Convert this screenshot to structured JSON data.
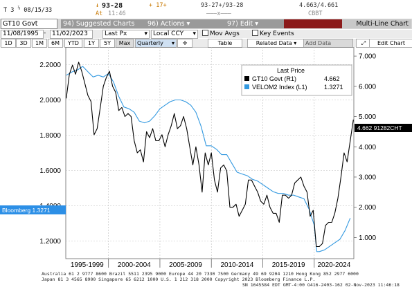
{
  "ticker": {
    "t_prefix": "T 3",
    "frac": "⅞",
    "maturity": "08/15/33",
    "arrow": "↓",
    "price": "93-28",
    "at_label": "At",
    "at_time": "11:46",
    "change": "+ 17+",
    "bid_ask": "93-27+/93-28",
    "dashes": "———x———",
    "yields": "4.663/4.661",
    "source": "CBBT"
  },
  "toolbar": {
    "security": "GT10 Govt",
    "suggested_label": "94) Suggested Charts",
    "actions_label": "96) Actions ▾",
    "edit_label": "97) Edit ▾",
    "multi_line_label": "Multi-Line Chart"
  },
  "range_bar": {
    "start_date": "11/08/1995",
    "end_date": "11/02/2023",
    "field": "Last Px",
    "currency": "Local CCY",
    "mov_avgs": "Mov Avgs",
    "key_events": "Key Events"
  },
  "period_bar": {
    "periods": [
      "1D",
      "3D",
      "1M",
      "6M",
      "YTD",
      "1Y",
      "5Y",
      "Max"
    ],
    "frequency": "Quarterly",
    "table": "Table",
    "related_data": "Related Data",
    "add_data": "Add Data",
    "edit_chart": "Edit Chart"
  },
  "legend": {
    "title": "Last Price",
    "entries": [
      {
        "label": "GT10 Govt  (R1)",
        "value": "4.662"
      },
      {
        "label": "VELOM2 Index  (L1)",
        "value": "1.3271"
      }
    ]
  },
  "tags": {
    "right_last": "4.662 91282CHT",
    "left_last": "Bloomberg 1.3271"
  },
  "colors": {
    "gt10": "#000000",
    "velom2": "#3399e0",
    "tag_black": "#000000",
    "tag_blue": "#2c8fe6"
  },
  "chart_data": {
    "type": "line",
    "x_labels": [
      "1995-1999",
      "2000-2004",
      "2005-2009",
      "2010-2014",
      "2015-2019",
      "2020-2024"
    ],
    "left_axis": {
      "ticks": [
        "2.2000",
        "2.0000",
        "1.8000",
        "1.6000",
        "1.4000",
        "1.2000"
      ],
      "ylim": [
        1.1,
        2.3
      ]
    },
    "right_axis": {
      "ticks": [
        "7.000",
        "6.000",
        "5.000",
        "4.000",
        "3.000",
        "2.000",
        "1.000"
      ],
      "ylim": [
        0.3,
        7.3
      ]
    },
    "x_range": [
      1995.85,
      2023.85
    ],
    "grid": true,
    "series": [
      {
        "name": "VELOM2 Index",
        "axis": "left",
        "x": [
          1995.9,
          1996.5,
          1997.0,
          1997.5,
          1998.0,
          1998.5,
          1999.0,
          1999.5,
          2000.0,
          2000.5,
          2001.0,
          2001.5,
          2002.0,
          2002.5,
          2003.0,
          2003.5,
          2004.0,
          2004.5,
          2005.0,
          2005.5,
          2006.0,
          2006.5,
          2007.0,
          2007.5,
          2008.0,
          2008.5,
          2009.0,
          2009.5,
          2010.0,
          2010.5,
          2011.0,
          2011.5,
          2012.0,
          2012.5,
          2013.0,
          2013.5,
          2014.0,
          2014.5,
          2015.0,
          2015.5,
          2016.0,
          2016.5,
          2017.0,
          2017.5,
          2018.0,
          2018.5,
          2019.0,
          2019.5,
          2020.0,
          2020.25,
          2020.5,
          2021.0,
          2021.5,
          2022.0,
          2022.5,
          2023.0,
          2023.5
        ],
        "y": [
          2.14,
          2.16,
          2.17,
          2.19,
          2.16,
          2.13,
          2.14,
          2.13,
          2.15,
          2.1,
          2.02,
          1.96,
          1.95,
          1.93,
          1.88,
          1.87,
          1.88,
          1.91,
          1.95,
          1.97,
          1.99,
          2.0,
          2.0,
          1.99,
          1.97,
          1.93,
          1.85,
          1.74,
          1.74,
          1.72,
          1.69,
          1.69,
          1.64,
          1.59,
          1.58,
          1.57,
          1.55,
          1.54,
          1.52,
          1.5,
          1.48,
          1.47,
          1.47,
          1.46,
          1.46,
          1.45,
          1.44,
          1.38,
          1.29,
          1.14,
          1.14,
          1.15,
          1.17,
          1.19,
          1.21,
          1.26,
          1.33
        ]
      },
      {
        "name": "GT10 Govt",
        "axis": "right",
        "x": [
          1995.9,
          1996.2,
          1996.5,
          1996.8,
          1997.1,
          1997.4,
          1997.7,
          1998.0,
          1998.3,
          1998.6,
          1998.9,
          1999.2,
          1999.5,
          1999.8,
          2000.1,
          2000.4,
          2000.7,
          2001.0,
          2001.3,
          2001.6,
          2001.9,
          2002.2,
          2002.5,
          2002.8,
          2003.1,
          2003.4,
          2003.7,
          2004.0,
          2004.3,
          2004.6,
          2004.9,
          2005.2,
          2005.5,
          2005.8,
          2006.1,
          2006.4,
          2006.7,
          2007.0,
          2007.3,
          2007.6,
          2007.9,
          2008.2,
          2008.5,
          2008.8,
          2009.1,
          2009.4,
          2009.7,
          2010.0,
          2010.3,
          2010.6,
          2010.9,
          2011.2,
          2011.5,
          2011.8,
          2012.1,
          2012.4,
          2012.7,
          2013.0,
          2013.3,
          2013.6,
          2013.9,
          2014.2,
          2014.5,
          2014.8,
          2015.1,
          2015.4,
          2015.7,
          2016.0,
          2016.3,
          2016.6,
          2016.9,
          2017.2,
          2017.5,
          2017.8,
          2018.1,
          2018.4,
          2018.7,
          2019.0,
          2019.3,
          2019.6,
          2019.9,
          2020.2,
          2020.5,
          2020.8,
          2021.1,
          2021.4,
          2021.7,
          2022.0,
          2022.3,
          2022.6,
          2022.9,
          2023.2,
          2023.5,
          2023.8
        ],
        "y": [
          5.6,
          6.4,
          6.7,
          6.4,
          6.8,
          6.5,
          6.1,
          5.7,
          5.5,
          4.4,
          4.6,
          5.3,
          6.0,
          6.3,
          6.5,
          6.0,
          5.8,
          5.2,
          5.3,
          5.0,
          5.1,
          5.0,
          4.2,
          3.8,
          3.9,
          3.5,
          4.5,
          4.3,
          4.6,
          4.2,
          4.2,
          4.4,
          4.0,
          4.4,
          4.7,
          5.1,
          4.6,
          4.7,
          5.0,
          4.6,
          4.0,
          3.4,
          4.0,
          3.4,
          2.5,
          3.8,
          3.4,
          3.8,
          2.9,
          2.5,
          3.3,
          3.4,
          3.2,
          2.0,
          2.0,
          2.1,
          1.7,
          1.9,
          2.1,
          2.9,
          2.9,
          2.7,
          2.5,
          2.2,
          2.1,
          2.4,
          2.0,
          1.8,
          1.8,
          1.5,
          2.4,
          2.4,
          2.3,
          2.4,
          2.8,
          2.9,
          3.0,
          2.7,
          2.5,
          1.7,
          1.9,
          0.7,
          0.7,
          0.8,
          1.4,
          1.5,
          1.5,
          1.8,
          2.3,
          3.0,
          3.8,
          3.5,
          4.2,
          4.9
        ]
      }
    ]
  },
  "footer": {
    "line1": "Australia 61 2 9777 8600 Brazil 5511 2395 9000 Europe 44 20 7330 7500 Germany 49 69 9204 1210 Hong Kong 852 2977 6000",
    "line2": "Japan 81 3 4565 8900      Singapore 65 6212 1000      U.S. 1 212 318 2000      Copyright 2023 Bloomberg Finance L.P.",
    "line3": "SN 1645584 EDT  GMT-4:00 G416-2403-162 02-Nov-2023 11:46:18"
  }
}
